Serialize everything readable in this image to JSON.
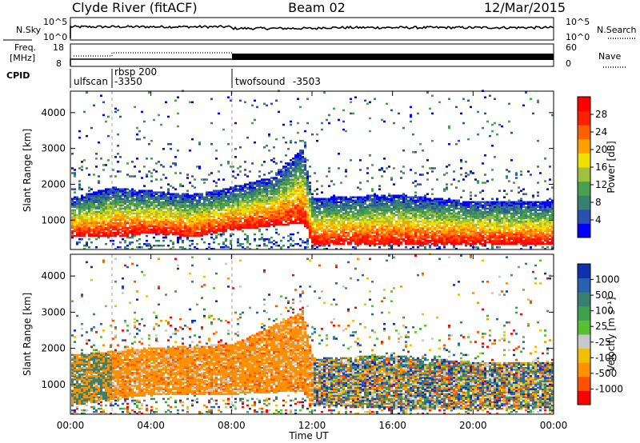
{
  "header": {
    "station": "Clyde River (fitACF)",
    "beam": "Beam 02",
    "date": "12/Mar/2015"
  },
  "summary_panels": {
    "nsky": {
      "label": "N.Sky",
      "ticks": [
        "10^5",
        "10^0"
      ],
      "right_label": "N.Search",
      "right_ticks": [
        "10^5",
        "10^0"
      ]
    },
    "freq": {
      "label_line1": "Freq.",
      "label_line2": "[MHz]",
      "ticks": [
        "18",
        "8"
      ],
      "right_label": "Nave",
      "right_ticks": [
        "60",
        "0"
      ]
    },
    "cpid": {
      "label": "CPID",
      "segments": [
        {
          "name": "ulfscan",
          "id": ""
        },
        {
          "name": "rbsp 200",
          "id": "-3350"
        },
        {
          "name": "twofsound",
          "id": "-3503"
        }
      ]
    }
  },
  "colorbars": {
    "power": {
      "title": "Power [dB]",
      "ticks": [
        "28",
        "24",
        "20",
        "16",
        "12",
        "8",
        "4"
      ],
      "colors": [
        "#0000ff",
        "#2a50b0",
        "#3a8070",
        "#48a050",
        "#a0c040",
        "#f0e000",
        "#ffa000",
        "#ff6000",
        "#ff2000",
        "#ff0000"
      ]
    },
    "velocity": {
      "title": "Velocity [m s⁻¹]",
      "ticks": [
        "1000",
        "500",
        "100",
        "25",
        "-25",
        "-100",
        "-500",
        "-1000"
      ],
      "colors": [
        "#1030b0",
        "#2a60b0",
        "#3a8070",
        "#3fa050",
        "#58c030",
        "#c8c8c8",
        "#f0c000",
        "#ff9000",
        "#ff5000",
        "#ff0000"
      ]
    }
  },
  "axes": {
    "ylabel": "Slant Range [km]",
    "yticks": [
      "4000",
      "3000",
      "2000",
      "1000"
    ],
    "xticks": [
      "00:00",
      "04:00",
      "08:00",
      "12:00",
      "16:00",
      "20:00",
      "00:00"
    ],
    "xlabel": "Time UT"
  },
  "chart_data": [
    {
      "type": "heatmap",
      "variable": "Power",
      "units": "dB",
      "x_range_hours": [
        0,
        24
      ],
      "y_range_km": [
        180,
        4600
      ],
      "color_range": [
        0,
        32
      ],
      "main_echo_band_km": [
        [
          0,
          500,
          1600
        ],
        [
          2,
          500,
          1900
        ],
        [
          4,
          600,
          1800
        ],
        [
          6,
          500,
          1700
        ],
        [
          8,
          700,
          1900
        ],
        [
          10,
          800,
          2200
        ],
        [
          11.5,
          900,
          3000
        ],
        [
          12,
          300,
          1600
        ],
        [
          16,
          300,
          1700
        ],
        [
          20,
          300,
          1500
        ],
        [
          24,
          300,
          1500
        ]
      ]
    },
    {
      "type": "heatmap",
      "variable": "Velocity",
      "units": "m s⁻¹",
      "x_range_hours": [
        0,
        24
      ],
      "y_range_km": [
        180,
        4600
      ],
      "color_range": [
        -1000,
        1000
      ],
      "main_echo_band_km": [
        [
          0,
          400,
          1800
        ],
        [
          4,
          700,
          2000
        ],
        [
          8,
          700,
          2100
        ],
        [
          11.5,
          800,
          3000
        ],
        [
          12,
          400,
          1700
        ],
        [
          16,
          300,
          1800
        ],
        [
          20,
          300,
          1600
        ],
        [
          24,
          300,
          1600
        ]
      ]
    }
  ]
}
